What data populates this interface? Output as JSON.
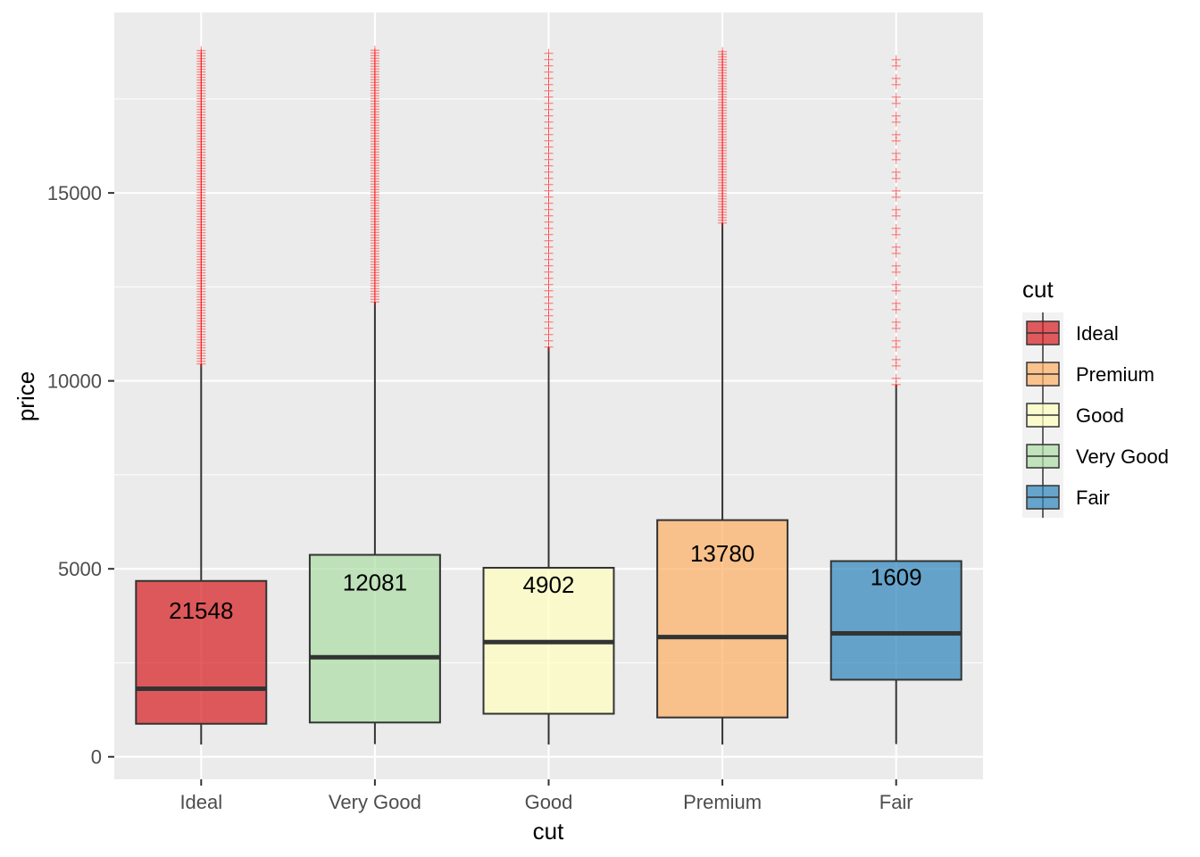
{
  "chart_data": {
    "type": "boxplot",
    "xlabel": "cut",
    "ylabel": "price",
    "ylim": [
      -600,
      19800
    ],
    "y_ticks": [
      0,
      5000,
      10000,
      15000
    ],
    "y_tick_labels": [
      "0",
      "5000",
      "10000",
      "15000"
    ],
    "categories": [
      "Ideal",
      "Very Good",
      "Good",
      "Premium",
      "Fair"
    ],
    "boxes": [
      {
        "category": "Ideal",
        "color": "#D7191C",
        "lower_whisker": 326,
        "q1": 878,
        "median": 1810,
        "q3": 4678,
        "upper_whisker": 10450,
        "outliers_from": 10450,
        "outliers_to": 18806,
        "count_label": "21548"
      },
      {
        "category": "Very Good",
        "color": "#ABDDA4",
        "lower_whisker": 336,
        "q1": 912,
        "median": 2648,
        "q3": 5372,
        "upper_whisker": 12100,
        "outliers_from": 12100,
        "outliers_to": 18818,
        "count_label": "12081"
      },
      {
        "category": "Good",
        "color": "#FFFFBF",
        "lower_whisker": 327,
        "q1": 1145,
        "median": 3050,
        "q3": 5028,
        "upper_whisker": 10900,
        "outliers_from": 10900,
        "outliers_to": 18788,
        "count_label": "4902"
      },
      {
        "category": "Premium",
        "color": "#FDAE61",
        "lower_whisker": 326,
        "q1": 1046,
        "median": 3185,
        "q3": 6296,
        "upper_whisker": 14200,
        "outliers_from": 14200,
        "outliers_to": 18823,
        "count_label": "13780"
      },
      {
        "category": "Fair",
        "color": "#2B83BA",
        "lower_whisker": 337,
        "q1": 2050,
        "median": 3282,
        "q3": 5206,
        "upper_whisker": 9900,
        "outliers_from": 9900,
        "outliers_to": 18574,
        "count_label": "1609"
      }
    ],
    "outlier_color": "#FF0000",
    "box_alpha": 0.7,
    "grid": true,
    "legend": {
      "title": "cut",
      "position": "right",
      "items": [
        {
          "label": "Ideal",
          "color": "#D7191C"
        },
        {
          "label": "Premium",
          "color": "#FDAE61"
        },
        {
          "label": "Good",
          "color": "#FFFFBF"
        },
        {
          "label": "Very Good",
          "color": "#ABDDA4"
        },
        {
          "label": "Fair",
          "color": "#2B83BA"
        }
      ]
    }
  }
}
